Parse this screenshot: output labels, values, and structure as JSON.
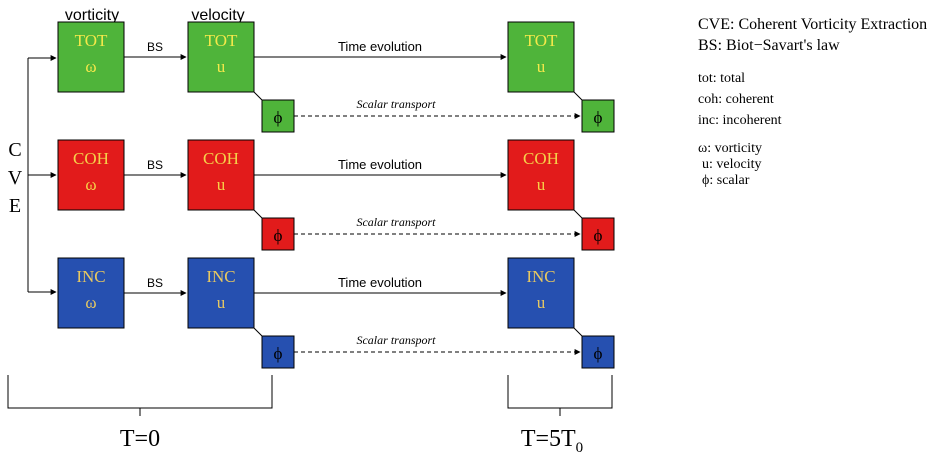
{
  "headers": {
    "vorticity": "vorticity",
    "velocity": "velocity"
  },
  "cve_letters": [
    "C",
    "V",
    "E"
  ],
  "edge_labels": {
    "bs": "BS",
    "time_evolution": "Time evolution",
    "scalar_transport": "Scalar transport"
  },
  "rows": [
    {
      "id": "tot",
      "name": "TOT",
      "vorticity_symbol": "ω",
      "velocity_symbol": "u",
      "scalar_symbol": "ϕ",
      "fill": "#4fb43a",
      "text_color": "#f4e84a"
    },
    {
      "id": "coh",
      "name": "COH",
      "vorticity_symbol": "ω",
      "velocity_symbol": "u",
      "scalar_symbol": "ϕ",
      "fill": "#e21b1b",
      "text_color": "#f4d24a"
    },
    {
      "id": "inc",
      "name": "INC",
      "vorticity_symbol": "ω",
      "velocity_symbol": "u",
      "scalar_symbol": "ϕ",
      "fill": "#2650b0",
      "text_color": "#e8c860"
    }
  ],
  "time_labels": {
    "t0": "T=0",
    "t5_main": "T=5T",
    "t5_sub": "0"
  },
  "legend": {
    "group1": [
      "CVE: Coherent Vorticity Extraction",
      "BS: Biot−Savart's law"
    ],
    "group2": [
      "tot: total",
      "coh: coherent",
      "inc: incoherent"
    ],
    "group3": [
      "ω:  vorticity",
      "u: velocity",
      "ϕ:  scalar"
    ]
  }
}
